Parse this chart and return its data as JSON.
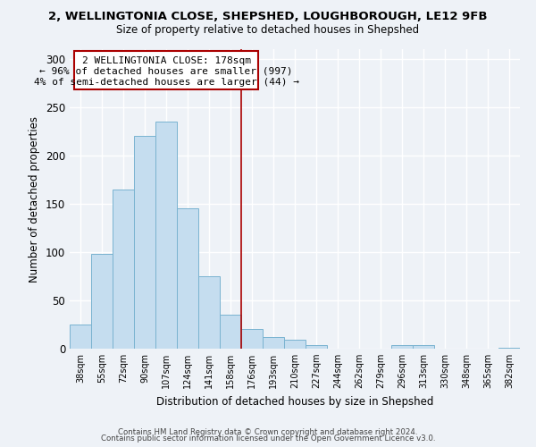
{
  "title": "2, WELLINGTONIA CLOSE, SHEPSHED, LOUGHBOROUGH, LE12 9FB",
  "subtitle": "Size of property relative to detached houses in Shepshed",
  "xlabel": "Distribution of detached houses by size in Shepshed",
  "ylabel": "Number of detached properties",
  "bin_labels": [
    "38sqm",
    "55sqm",
    "72sqm",
    "90sqm",
    "107sqm",
    "124sqm",
    "141sqm",
    "158sqm",
    "176sqm",
    "193sqm",
    "210sqm",
    "227sqm",
    "244sqm",
    "262sqm",
    "279sqm",
    "296sqm",
    "313sqm",
    "330sqm",
    "348sqm",
    "365sqm",
    "382sqm"
  ],
  "bar_heights": [
    25,
    98,
    165,
    220,
    235,
    145,
    75,
    35,
    20,
    12,
    9,
    4,
    0,
    0,
    0,
    4,
    4,
    0,
    0,
    0,
    1
  ],
  "bar_color": "#c5ddef",
  "bar_edge_color": "#7ab3d0",
  "vline_color": "#aa0000",
  "annotation_title": "2 WELLINGTONIA CLOSE: 178sqm",
  "annotation_line1": "← 96% of detached houses are smaller (997)",
  "annotation_line2": "4% of semi-detached houses are larger (44) →",
  "annotation_box_color": "#ffffff",
  "annotation_box_edge": "#aa0000",
  "ylim": [
    0,
    310
  ],
  "yticks": [
    0,
    50,
    100,
    150,
    200,
    250,
    300
  ],
  "footer1": "Contains HM Land Registry data © Crown copyright and database right 2024.",
  "footer2": "Contains public sector information licensed under the Open Government Licence v3.0.",
  "background_color": "#eef2f7",
  "grid_color": "#ffffff",
  "title_fontsize": 9.5,
  "subtitle_fontsize": 8.5
}
